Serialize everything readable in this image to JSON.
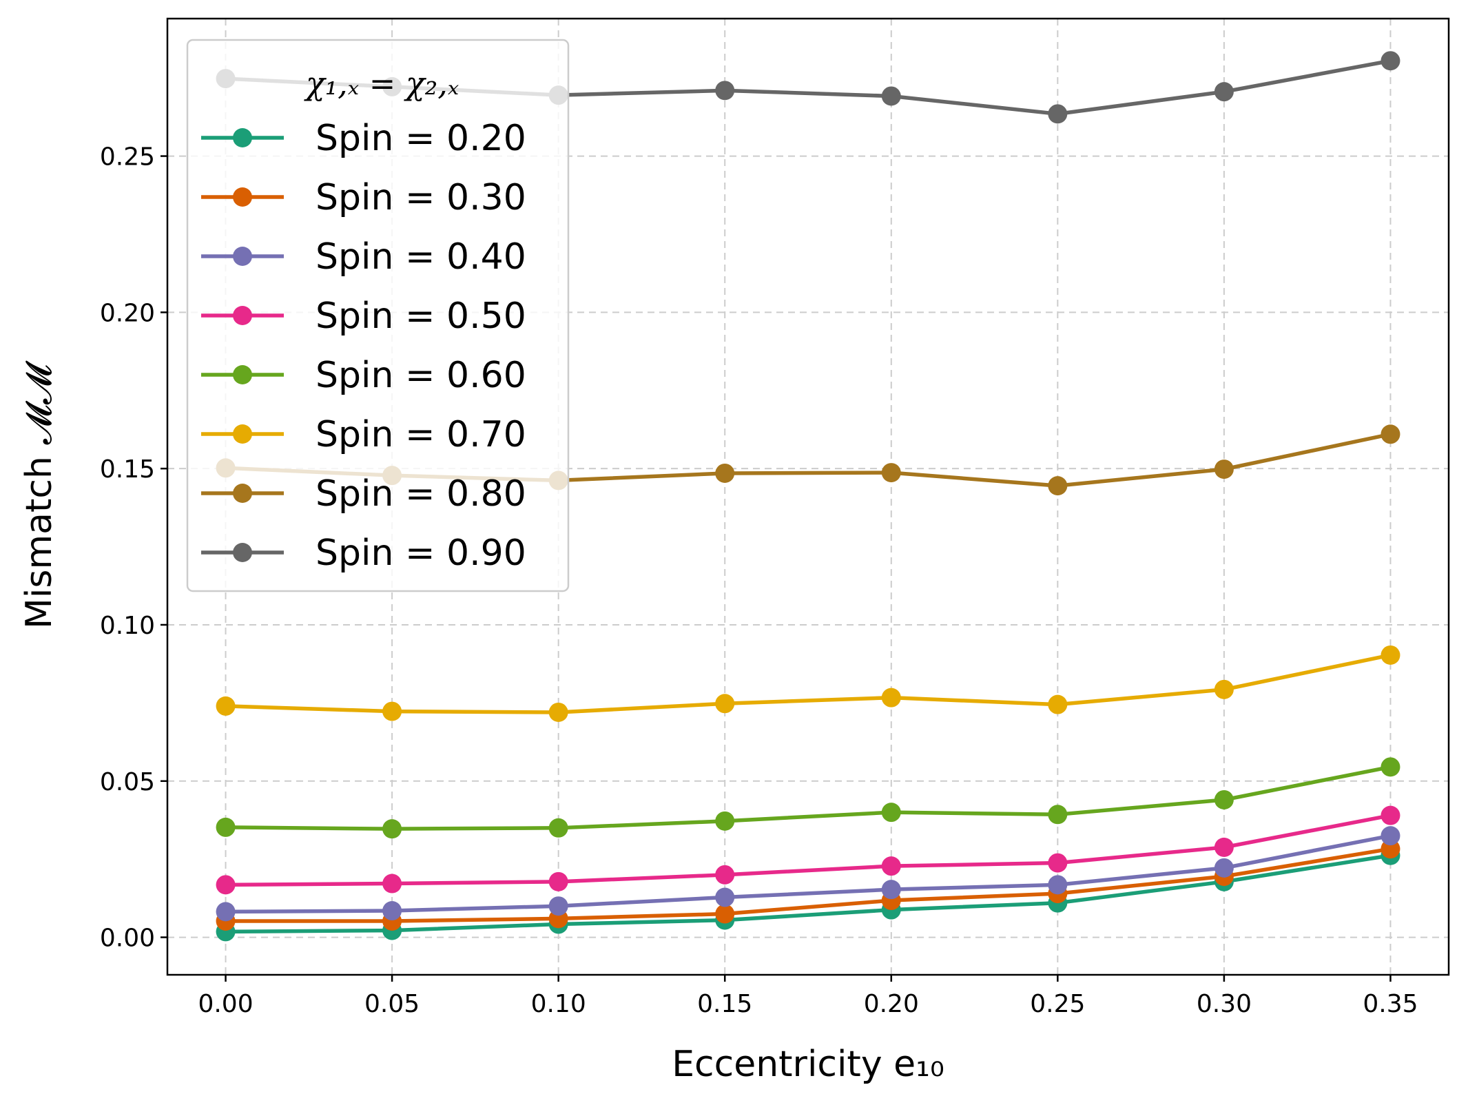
{
  "chart_data": {
    "type": "line",
    "title": "",
    "xlabel": "Eccentricity e₁₀",
    "ylabel": "Mismatch 𝓜𝓜",
    "x": [
      0.0,
      0.05,
      0.1,
      0.15,
      0.2,
      0.25,
      0.3,
      0.35
    ],
    "xlim": [
      -0.0175,
      0.3675
    ],
    "ylim": [
      -0.012,
      0.294
    ],
    "xticks": [
      "0.00",
      "0.05",
      "0.10",
      "0.15",
      "0.20",
      "0.25",
      "0.30",
      "0.35"
    ],
    "yticks": [
      "0.00",
      "0.05",
      "0.10",
      "0.15",
      "0.20",
      "0.25"
    ],
    "ytick_values": [
      0.0,
      0.05,
      0.1,
      0.15,
      0.2,
      0.25
    ],
    "grid": true,
    "legend_title": "χ₁,ₓ = χ₂,ₓ",
    "legend_position": "top-left",
    "series": [
      {
        "name": "Spin = 0.20",
        "color": "#1b9e77",
        "values": [
          0.0018,
          0.0022,
          0.0042,
          0.0055,
          0.0088,
          0.011,
          0.0178,
          0.0262
        ]
      },
      {
        "name": "Spin = 0.30",
        "color": "#d95f02",
        "values": [
          0.0052,
          0.0052,
          0.006,
          0.0075,
          0.0118,
          0.014,
          0.0195,
          0.0283
        ]
      },
      {
        "name": "Spin = 0.40",
        "color": "#7570b3",
        "values": [
          0.0082,
          0.0085,
          0.01,
          0.0128,
          0.0153,
          0.0168,
          0.0222,
          0.0325
        ]
      },
      {
        "name": "Spin = 0.50",
        "color": "#e7298a",
        "values": [
          0.0168,
          0.0172,
          0.0178,
          0.02,
          0.0228,
          0.0238,
          0.0288,
          0.039
        ]
      },
      {
        "name": "Spin = 0.60",
        "color": "#66a61e",
        "values": [
          0.0352,
          0.0347,
          0.035,
          0.0372,
          0.04,
          0.0393,
          0.044,
          0.0545
        ]
      },
      {
        "name": "Spin = 0.70",
        "color": "#e6ab02",
        "values": [
          0.074,
          0.0723,
          0.072,
          0.0748,
          0.0767,
          0.0745,
          0.0793,
          0.0903
        ]
      },
      {
        "name": "Spin = 0.80",
        "color": "#a6761d",
        "values": [
          0.1502,
          0.1478,
          0.1462,
          0.1485,
          0.1487,
          0.1445,
          0.1498,
          0.161
        ]
      },
      {
        "name": "Spin = 0.90",
        "color": "#666666",
        "values": [
          0.2748,
          0.2722,
          0.2695,
          0.271,
          0.2692,
          0.2635,
          0.2706,
          0.2805
        ]
      }
    ]
  }
}
